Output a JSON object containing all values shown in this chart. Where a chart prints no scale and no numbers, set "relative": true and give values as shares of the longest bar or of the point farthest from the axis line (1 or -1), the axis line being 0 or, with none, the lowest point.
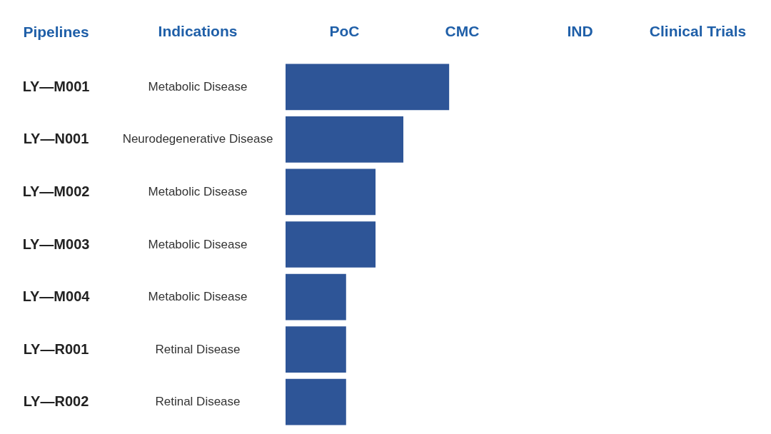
{
  "chart_data": {
    "type": "bar",
    "orientation": "horizontal",
    "relative": true,
    "ylabel": "Pipelines",
    "categories": [
      "LY—M001",
      "LY—N001",
      "LY—M002",
      "LY—M003",
      "LY—M004",
      "LY—R001",
      "LY—R002"
    ],
    "series": [
      {
        "color": "#2e5597",
        "values": [
          1,
          0.72,
          0.55,
          0.55,
          0.37,
          0.37,
          0.37
        ]
      }
    ],
    "annotations": [
      "Indications",
      "Metabolic Disease",
      "Neurodegenerative Disease",
      "Metabolic Disease",
      "Metabolic Disease",
      "Metabolic Disease",
      "Retinal Disease",
      "Retinal Disease",
      "PoC",
      "CMC",
      "IND",
      "Clinical Trials"
    ]
  }
}
